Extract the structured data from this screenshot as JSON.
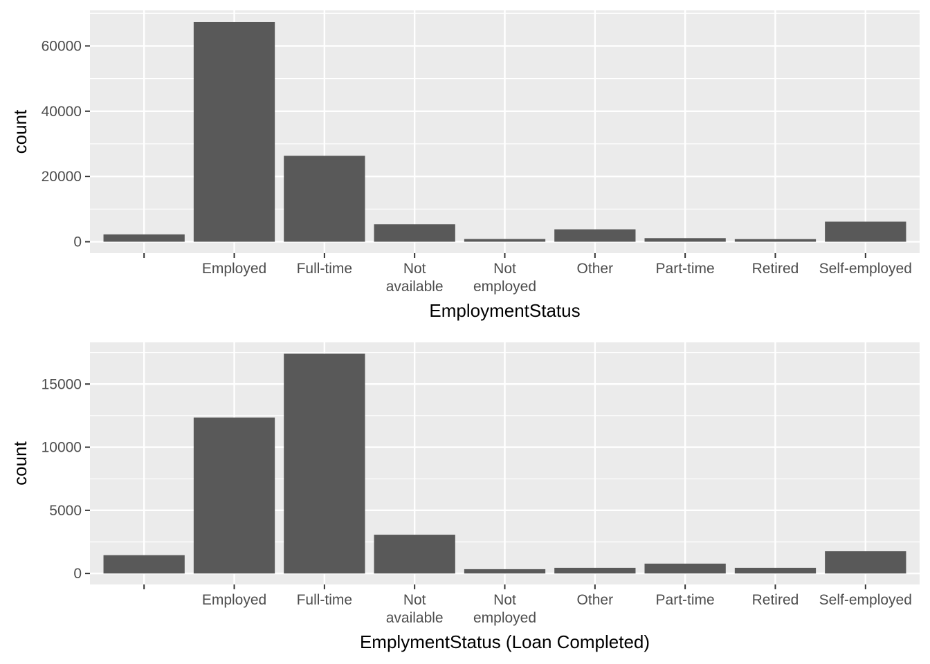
{
  "colors": {
    "panel": "#ebebeb",
    "grid": "#ffffff",
    "bar": "#595959",
    "tick": "#333333"
  },
  "chart_data": [
    {
      "type": "bar",
      "title": "",
      "xlabel": "EmploymentStatus",
      "ylabel": "count",
      "categories": [
        "",
        "Employed",
        "Full-time",
        "Not\navailable",
        "Not\nemployed",
        "Other",
        "Part-time",
        "Retired",
        "Self-employed"
      ],
      "values": [
        2250,
        67300,
        26350,
        5350,
        830,
        3800,
        1100,
        800,
        6150
      ],
      "ylim": [
        -3500,
        70900
      ],
      "yticks": [
        0,
        20000,
        40000,
        60000
      ],
      "ytick_labels": [
        "0",
        "20000",
        "40000",
        "60000"
      ],
      "grid": true,
      "legend": "none"
    },
    {
      "type": "bar",
      "title": "",
      "xlabel": "EmplymentStatus (Loan Completed)",
      "ylabel": "count",
      "categories": [
        "",
        "Employed",
        "Full-time",
        "Not\navailable",
        "Not\nemployed",
        "Other",
        "Part-time",
        "Retired",
        "Self-employed"
      ],
      "values": [
        1450,
        12350,
        17400,
        3070,
        340,
        450,
        780,
        450,
        1760
      ],
      "ylim": [
        -870,
        18300
      ],
      "yticks": [
        0,
        5000,
        10000,
        15000
      ],
      "ytick_labels": [
        "0",
        "5000",
        "10000",
        "15000"
      ],
      "grid": true,
      "legend": "none"
    }
  ]
}
